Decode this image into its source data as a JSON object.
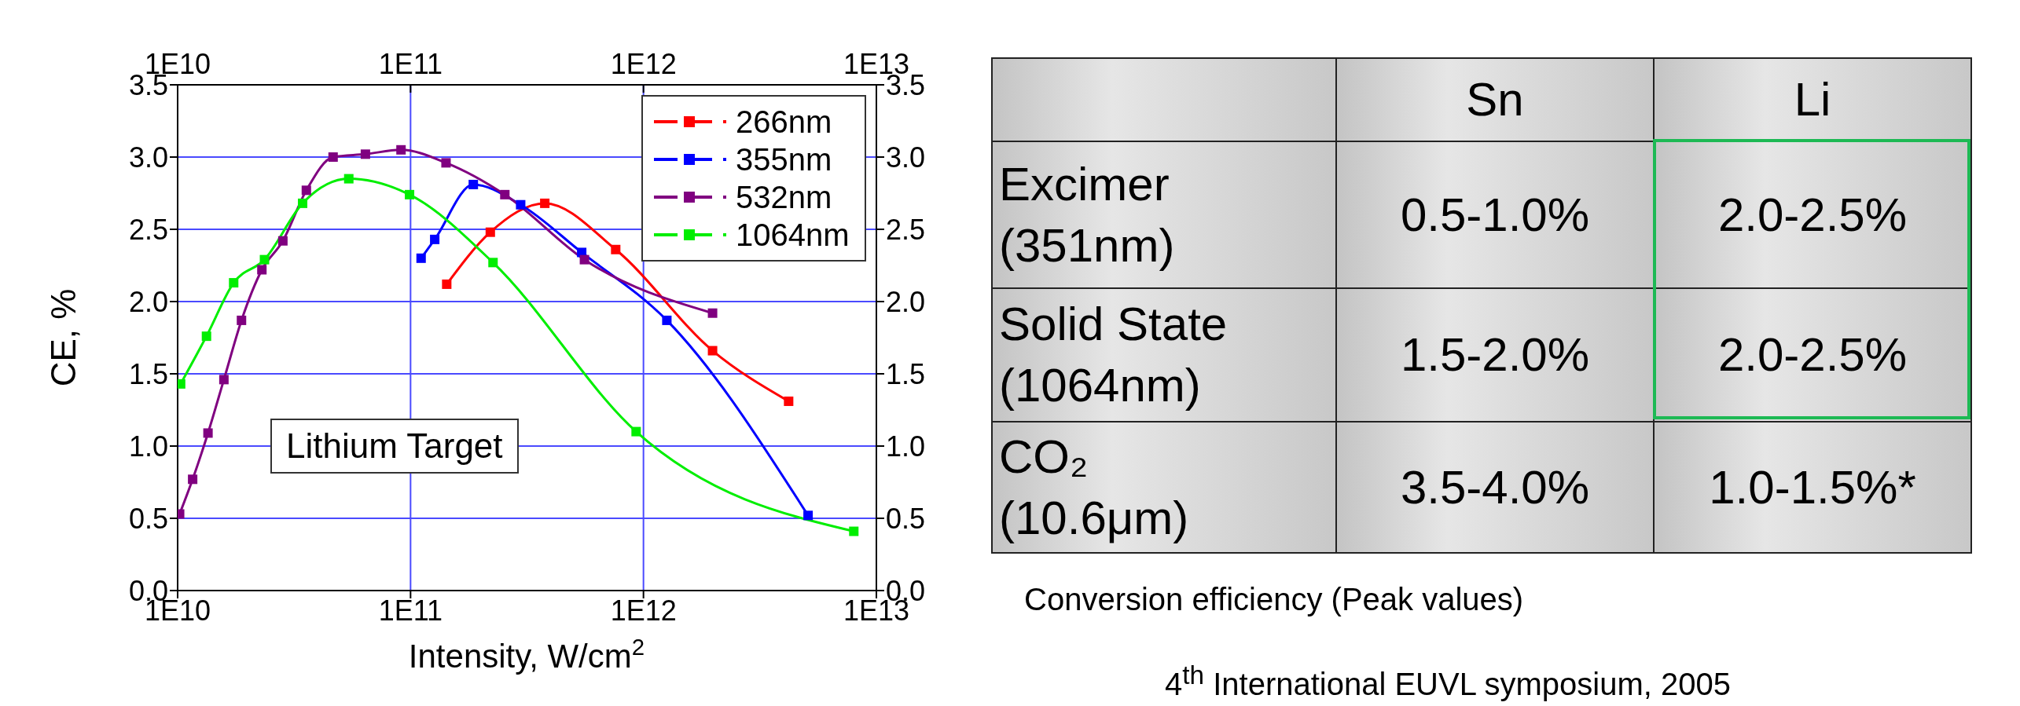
{
  "chart_data": [
    {
      "type": "line",
      "xlabel": "Intensity, W/cm$^{2}$",
      "ylabel": "CE, %",
      "annotations": [
        "Lithium Target"
      ],
      "xlim": [
        10000000000.0,
        10000000000000.0
      ],
      "xticks": [
        {
          "value": 10000000000.0,
          "label": "1E10"
        },
        {
          "value": 100000000000.0,
          "label": "1E11"
        },
        {
          "value": 1000000000000.0,
          "label": "1E12"
        },
        {
          "value": 10000000000000.0,
          "label": "1E13"
        }
      ],
      "ylim": [
        0,
        3.5
      ],
      "yticks": [
        {
          "value": 0,
          "label": "0.0"
        },
        0.5,
        {
          "value": 1,
          "label": "1.0"
        },
        1.5,
        {
          "value": 2,
          "label": "2.0"
        },
        2.5,
        {
          "value": 3,
          "label": "3.0"
        },
        3.5
      ],
      "y2lim": [
        0,
        3.5
      ],
      "y2ticks": [
        {
          "value": 0,
          "label": "0.0"
        },
        0.5,
        {
          "value": 1,
          "label": "1.0"
        },
        1.5,
        {
          "value": 2,
          "label": "2.0"
        },
        2.5,
        {
          "value": 3,
          "label": "3.0"
        },
        3.5
      ],
      "log": "x",
      "grid": true,
      "legend": "top right",
      "marker": "square",
      "line_style": "solid",
      "series": [
        {
          "name": "266nm",
          "color": "#ff0000",
          "x": [
            143000000000.0,
            220000000000.0,
            377000000000.0,
            760000000000.0,
            1980000000000.0,
            4200000000000.0
          ],
          "values": [
            2.12,
            2.48,
            2.68,
            2.36,
            1.66,
            1.31
          ]
        },
        {
          "name": "355nm",
          "color": "#0000ff",
          "x": [
            111000000000.0,
            127000000000.0,
            186000000000.0,
            297000000000.0,
            543000000000.0,
            1260000000000.0,
            5090000000000.0
          ],
          "values": [
            2.3,
            2.43,
            2.81,
            2.67,
            2.34,
            1.87,
            0.52
          ]
        },
        {
          "name": "532nm",
          "color": "#800080",
          "x": [
            10200000000.0,
            11600000000.0,
            13500000000.0,
            15800000000.0,
            18800000000.0,
            23000000000.0,
            28300000000.0,
            35700000000.0,
            46500000000.0,
            64000000000.0,
            91000000000.0,
            142000000000.0,
            254000000000.0,
            558000000000.0,
            1980000000000.0
          ],
          "values": [
            0.53,
            0.77,
            1.09,
            1.46,
            1.87,
            2.22,
            2.42,
            2.77,
            3.0,
            3.02,
            3.05,
            2.96,
            2.74,
            2.29,
            1.92
          ]
        },
        {
          "name": "1064nm",
          "color": "#00ee00",
          "x": [
            10300000000.0,
            13300000000.0,
            17400000000.0,
            23600000000.0,
            34400000000.0,
            54300000000.0,
            99000000000.0,
            226000000000.0,
            930000000000.0,
            8000000000000.0
          ],
          "values": [
            1.43,
            1.76,
            2.13,
            2.29,
            2.68,
            2.85,
            2.74,
            2.27,
            1.1,
            0.41
          ]
        }
      ]
    },
    {
      "type": "other",
      "annotations": [
        "Sn",
        "Li",
        "Excimer (351nm)",
        "0.5-1.0%",
        "2.0-2.5%",
        "Solid State (1064nm)",
        "1.5-2.0%",
        "2.0-2.5%",
        "CO₂ (10.6μm)",
        "3.5-4.0%",
        "1.0-1.5%*",
        "Conversion efficiency (Peak values)",
        "4$^{th}$ International EUVL symposium, 2005"
      ]
    }
  ]
}
